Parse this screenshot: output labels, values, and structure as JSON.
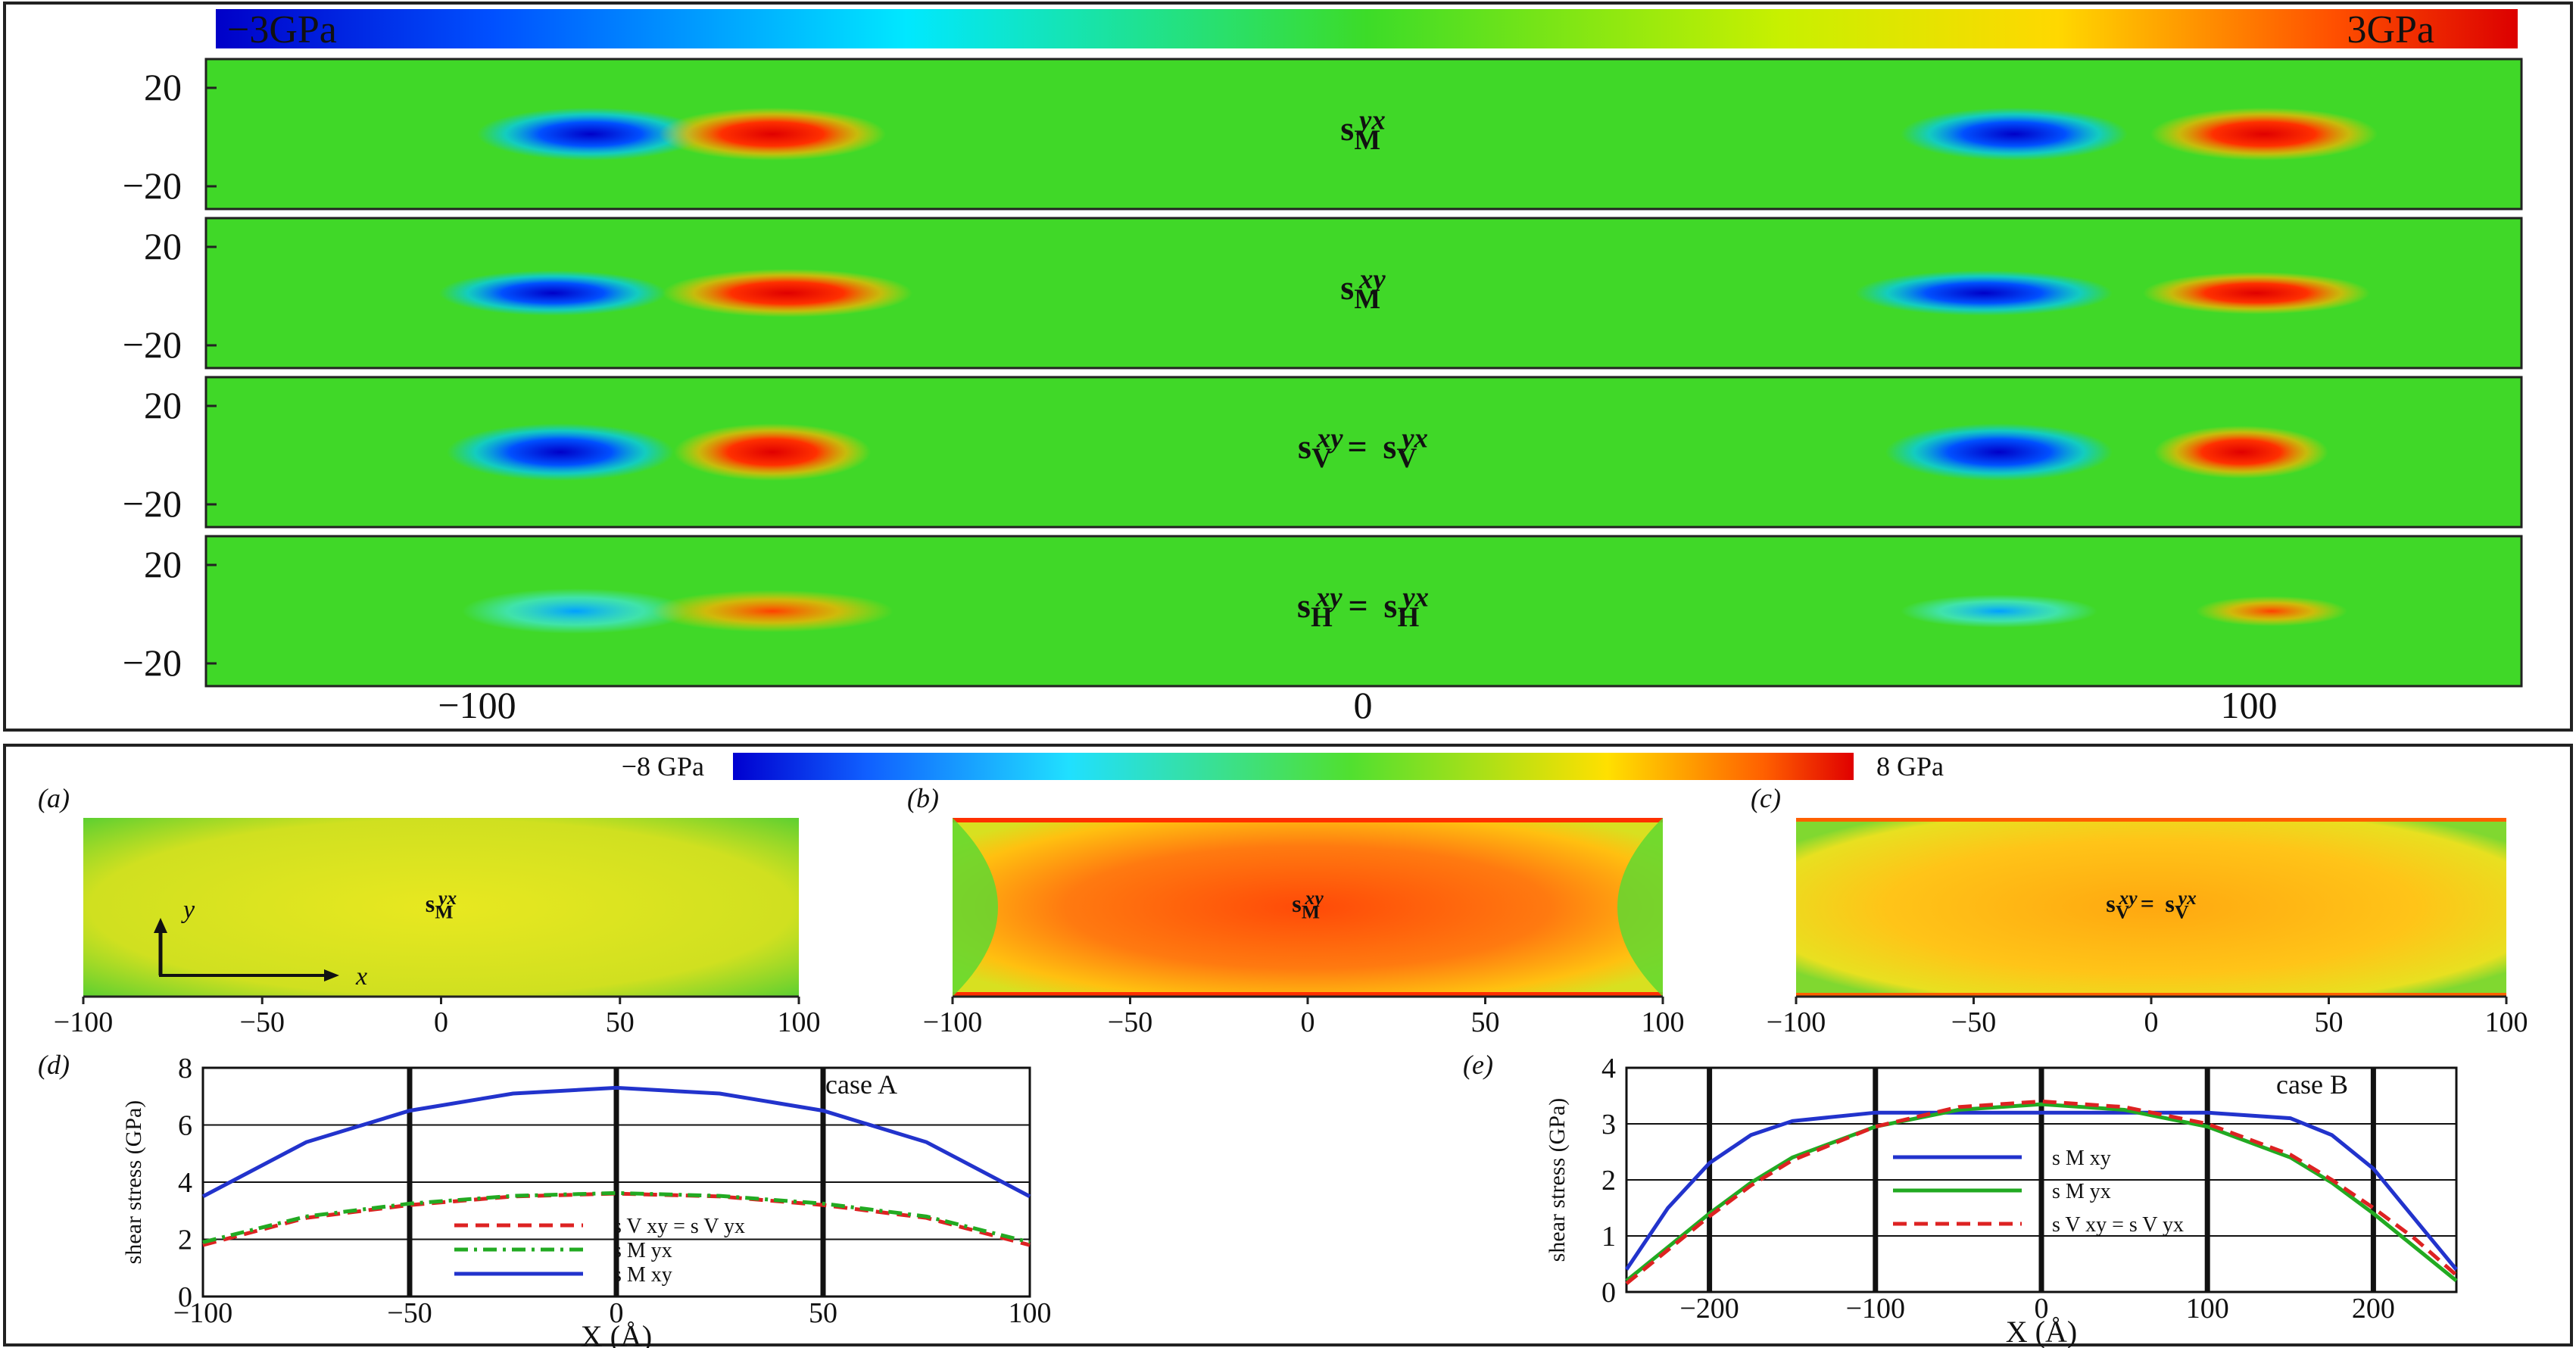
{
  "top_colorbar": {
    "min_label": "−3GPa",
    "max_label": "3GPa"
  },
  "top_maps": {
    "y_ticks": [
      "20",
      "−20"
    ],
    "x_ticks": [
      "−100",
      "0",
      "100"
    ],
    "panels": [
      {
        "lhs": "s",
        "lhs_sub": "M",
        "lhs_sup": "yx",
        "rhs": "",
        "rhs_sub": "",
        "rhs_sup": ""
      },
      {
        "lhs": "s",
        "lhs_sub": "M",
        "lhs_sup": "xy",
        "rhs": "",
        "rhs_sub": "",
        "rhs_sup": ""
      },
      {
        "lhs": "s",
        "lhs_sub": "V",
        "lhs_sup": "xy",
        "rhs": "s",
        "rhs_sub": "V",
        "rhs_sup": "yx"
      },
      {
        "lhs": "s",
        "lhs_sub": "H",
        "lhs_sup": "xy",
        "rhs": "s",
        "rhs_sub": "H",
        "rhs_sup": "yx"
      }
    ]
  },
  "bottom_colorbar": {
    "min_label": "−8 GPa",
    "max_label": "8 GPa"
  },
  "bottom_maps": {
    "x_ticks": [
      "−100",
      "−50",
      "0",
      "50",
      "100"
    ],
    "panels": [
      {
        "tag": "(a)",
        "lhs": "s",
        "lhs_sub": "M",
        "lhs_sup": "yx",
        "rhs": "",
        "rhs_sub": "",
        "rhs_sup": ""
      },
      {
        "tag": "(b)",
        "lhs": "s",
        "lhs_sub": "M",
        "lhs_sup": "xy",
        "rhs": "",
        "rhs_sub": "",
        "rhs_sup": ""
      },
      {
        "tag": "(c)",
        "lhs": "s",
        "lhs_sub": "V",
        "lhs_sup": "xy",
        "rhs": "s",
        "rhs_sub": "V",
        "rhs_sup": "yx"
      }
    ],
    "axis_x": "x",
    "axis_y": "y"
  },
  "chart_data": [
    {
      "type": "line",
      "panel": "(d)",
      "annotation": "case A",
      "xlabel": "X (Å)",
      "ylabel": "shear stress (GPa)",
      "xlim": [
        -100,
        100
      ],
      "ylim": [
        0,
        8
      ],
      "x_ticks": [
        "−100",
        "−50",
        "0",
        "50",
        "100"
      ],
      "y_ticks": [
        "0",
        "2",
        "4",
        "6",
        "8"
      ],
      "x": [
        -100,
        -75,
        -50,
        -25,
        0,
        25,
        50,
        75,
        100
      ],
      "series": [
        {
          "name": "s V xy = s V yx",
          "color": "#dd2222",
          "dash": "dashed",
          "values": [
            1.8,
            2.75,
            3.2,
            3.5,
            3.6,
            3.5,
            3.2,
            2.75,
            1.8
          ]
        },
        {
          "name": "s M yx",
          "color": "#22aa22",
          "dash": "dashdot",
          "values": [
            1.9,
            2.8,
            3.25,
            3.52,
            3.62,
            3.52,
            3.25,
            2.8,
            1.9
          ]
        },
        {
          "name": "s M xy",
          "color": "#2233cc",
          "dash": "solid",
          "values": [
            3.5,
            5.4,
            6.5,
            7.1,
            7.3,
            7.1,
            6.5,
            5.4,
            3.5
          ]
        }
      ]
    },
    {
      "type": "line",
      "panel": "(e)",
      "annotation": "case B",
      "xlabel": "X (Å)",
      "ylabel": "shear stress (GPa)",
      "xlim": [
        -250,
        250
      ],
      "ylim": [
        0,
        4
      ],
      "x_ticks": [
        "−200",
        "−100",
        "0",
        "100",
        "200"
      ],
      "y_ticks": [
        "0",
        "1",
        "2",
        "3",
        "4"
      ],
      "x": [
        -250,
        -225,
        -200,
        -175,
        -150,
        -100,
        -50,
        0,
        50,
        100,
        150,
        175,
        200,
        225,
        250
      ],
      "series": [
        {
          "name": "s M xy",
          "color": "#2233cc",
          "dash": "solid",
          "values": [
            0.4,
            1.5,
            2.3,
            2.8,
            3.05,
            3.2,
            3.2,
            3.2,
            3.2,
            3.2,
            3.1,
            2.8,
            2.2,
            1.3,
            0.4
          ]
        },
        {
          "name": "s M yx",
          "color": "#22aa22",
          "dash": "solid",
          "values": [
            0.2,
            0.8,
            1.4,
            1.95,
            2.4,
            2.95,
            3.25,
            3.35,
            3.25,
            2.95,
            2.4,
            1.95,
            1.4,
            0.8,
            0.2
          ]
        },
        {
          "name": "s V xy = s V yx",
          "color": "#dd2222",
          "dash": "dashed",
          "values": [
            0.15,
            0.75,
            1.35,
            1.9,
            2.35,
            2.95,
            3.3,
            3.4,
            3.3,
            3.0,
            2.45,
            2.0,
            1.5,
            0.95,
            0.3
          ]
        }
      ]
    }
  ]
}
